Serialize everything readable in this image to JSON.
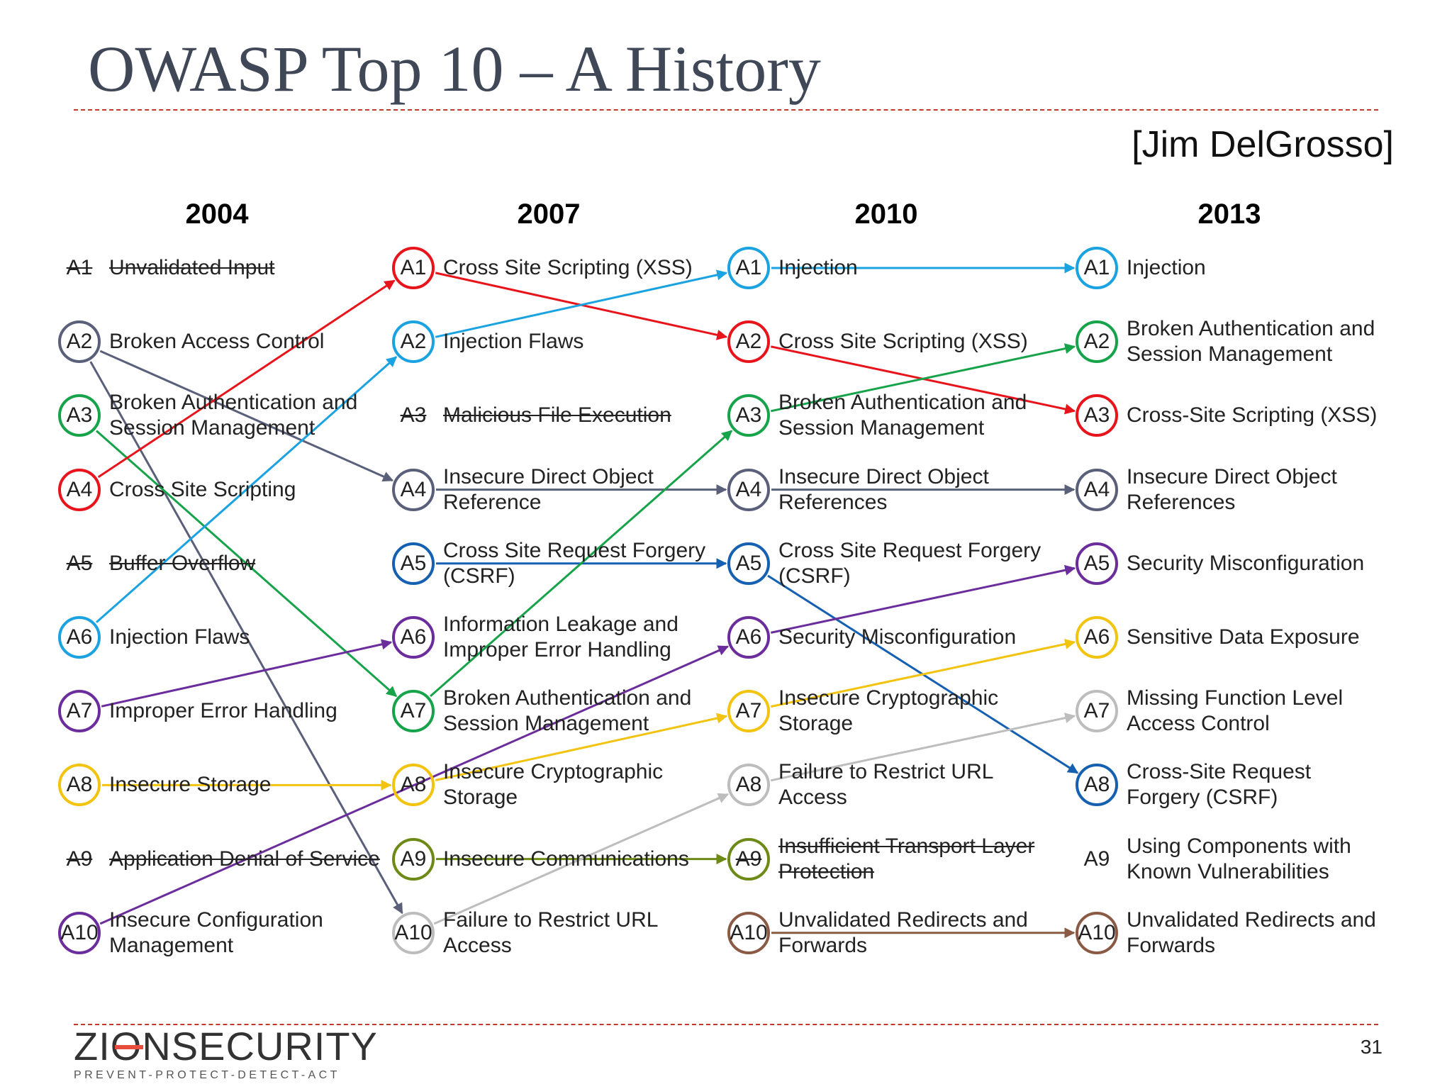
{
  "title": "OWASP Top 10 – A History",
  "credit": "[Jim DelGrosso]",
  "page_number": "31",
  "logo": {
    "name": "ZIONSECURITY",
    "tagline": "PREVENT-PROTECT-DETECT-ACT"
  },
  "colors": {
    "red": "#e8141c",
    "light_blue": "#1aa3e0",
    "green": "#16a34a",
    "slate": "#5a5f7a",
    "blue": "#1560b0",
    "purple": "#6b2d9c",
    "yellow": "#f2c30f",
    "olive": "#6e8a16",
    "gray": "#bdbdbd",
    "brown": "#8b5a44",
    "accent_line": "#c0392b"
  },
  "columns": [
    {
      "year": "2004",
      "entries": [
        {
          "code": "A1",
          "text": [
            "Unvalidated Input"
          ],
          "struck": true
        },
        {
          "code": "A2",
          "text": [
            "Broken Access Control"
          ],
          "color": "slate"
        },
        {
          "code": "A3",
          "text": [
            "Broken Authentication and",
            "Session Management"
          ],
          "color": "green"
        },
        {
          "code": "A4",
          "text": [
            "Cross Site Scripting"
          ],
          "color": "red"
        },
        {
          "code": "A5",
          "text": [
            "Buffer Overflow"
          ],
          "struck": true
        },
        {
          "code": "A6",
          "text": [
            "Injection Flaws"
          ],
          "color": "light_blue"
        },
        {
          "code": "A7",
          "text": [
            "Improper Error Handling"
          ],
          "color": "purple"
        },
        {
          "code": "A8",
          "text": [
            "Insecure Storage"
          ],
          "color": "yellow"
        },
        {
          "code": "A9",
          "text": [
            "Application Denial of Service"
          ],
          "struck": true
        },
        {
          "code": "A10",
          "text": [
            "Insecure Configuration",
            "Management"
          ],
          "color": "purple"
        }
      ]
    },
    {
      "year": "2007",
      "entries": [
        {
          "code": "A1",
          "text": [
            "Cross Site Scripting (XSS)"
          ],
          "color": "red"
        },
        {
          "code": "A2",
          "text": [
            "Injection Flaws"
          ],
          "color": "light_blue"
        },
        {
          "code": "A3",
          "text": [
            "Malicious File Execution"
          ],
          "struck": true
        },
        {
          "code": "A4",
          "text": [
            "Insecure Direct Object",
            "Reference"
          ],
          "color": "slate"
        },
        {
          "code": "A5",
          "text": [
            "Cross Site Request Forgery",
            "(CSRF)"
          ],
          "color": "blue"
        },
        {
          "code": "A6",
          "text": [
            "Information Leakage and",
            "Improper Error Handling"
          ],
          "color": "purple"
        },
        {
          "code": "A7",
          "text": [
            "Broken Authentication and",
            "Session Management"
          ],
          "color": "green"
        },
        {
          "code": "A8",
          "text": [
            "Insecure Cryptographic",
            "Storage"
          ],
          "color": "yellow"
        },
        {
          "code": "A9",
          "text": [
            "Insecure Communications"
          ],
          "color": "olive"
        },
        {
          "code": "A10",
          "text": [
            "Failure to Restrict URL",
            "Access"
          ],
          "color": "gray"
        }
      ]
    },
    {
      "year": "2010",
      "entries": [
        {
          "code": "A1",
          "text": [
            "Injection"
          ],
          "color": "light_blue"
        },
        {
          "code": "A2",
          "text": [
            "Cross Site Scripting (XSS)"
          ],
          "color": "red"
        },
        {
          "code": "A3",
          "text": [
            "Broken Authentication and",
            "Session Management"
          ],
          "color": "green"
        },
        {
          "code": "A4",
          "text": [
            "Insecure Direct Object",
            "References"
          ],
          "color": "slate"
        },
        {
          "code": "A5",
          "text": [
            "Cross Site Request Forgery",
            "(CSRF)"
          ],
          "color": "blue"
        },
        {
          "code": "A6",
          "text": [
            "Security Misconfiguration"
          ],
          "color": "purple"
        },
        {
          "code": "A7",
          "text": [
            "Insecure Cryptographic",
            "Storage"
          ],
          "color": "yellow"
        },
        {
          "code": "A8",
          "text": [
            "Failure to Restrict URL",
            "Access"
          ],
          "color": "gray"
        },
        {
          "code": "A9",
          "text": [
            "Insufficient Transport Layer",
            "Protection"
          ],
          "color": "olive",
          "struck": true
        },
        {
          "code": "A10",
          "text": [
            "Unvalidated Redirects and",
            "Forwards"
          ],
          "color": "brown"
        }
      ]
    },
    {
      "year": "2013",
      "entries": [
        {
          "code": "A1",
          "text": [
            "Injection"
          ],
          "color": "light_blue"
        },
        {
          "code": "A2",
          "text": [
            "Broken Authentication and",
            "Session Management"
          ],
          "color": "green"
        },
        {
          "code": "A3",
          "text": [
            "Cross-Site Scripting (XSS)"
          ],
          "color": "red"
        },
        {
          "code": "A4",
          "text": [
            "Insecure Direct Object",
            "References"
          ],
          "color": "slate"
        },
        {
          "code": "A5",
          "text": [
            "Security Misconfiguration"
          ],
          "color": "purple"
        },
        {
          "code": "A6",
          "text": [
            "Sensitive Data Exposure"
          ],
          "color": "yellow"
        },
        {
          "code": "A7",
          "text": [
            "Missing Function Level",
            "Access Control"
          ],
          "color": "gray"
        },
        {
          "code": "A8",
          "text": [
            "Cross-Site Request",
            "Forgery (CSRF)"
          ],
          "color": "blue"
        },
        {
          "code": "A9",
          "text": [
            "Using Components with",
            "Known Vulnerabilities"
          ]
        },
        {
          "code": "A10",
          "text": [
            "Unvalidated Redirects and",
            "Forwards"
          ],
          "color": "brown"
        }
      ]
    }
  ],
  "transitions": [
    {
      "from": [
        0,
        1
      ],
      "to": [
        1,
        3
      ],
      "color": "slate"
    },
    {
      "from": [
        0,
        1
      ],
      "to": [
        1,
        9
      ],
      "color": "slate"
    },
    {
      "from": [
        0,
        2
      ],
      "to": [
        1,
        6
      ],
      "color": "green"
    },
    {
      "from": [
        0,
        3
      ],
      "to": [
        1,
        0
      ],
      "color": "red"
    },
    {
      "from": [
        0,
        5
      ],
      "to": [
        1,
        1
      ],
      "color": "light_blue"
    },
    {
      "from": [
        0,
        6
      ],
      "to": [
        1,
        5
      ],
      "color": "purple"
    },
    {
      "from": [
        0,
        7
      ],
      "to": [
        1,
        7
      ],
      "color": "yellow"
    },
    {
      "from": [
        0,
        9
      ],
      "to": [
        2,
        5
      ],
      "color": "purple"
    },
    {
      "from": [
        1,
        0
      ],
      "to": [
        2,
        1
      ],
      "color": "red"
    },
    {
      "from": [
        1,
        1
      ],
      "to": [
        2,
        0
      ],
      "color": "light_blue"
    },
    {
      "from": [
        1,
        3
      ],
      "to": [
        2,
        3
      ],
      "color": "slate"
    },
    {
      "from": [
        1,
        4
      ],
      "to": [
        2,
        4
      ],
      "color": "blue"
    },
    {
      "from": [
        1,
        6
      ],
      "to": [
        2,
        2
      ],
      "color": "green"
    },
    {
      "from": [
        1,
        7
      ],
      "to": [
        2,
        6
      ],
      "color": "yellow"
    },
    {
      "from": [
        1,
        8
      ],
      "to": [
        2,
        8
      ],
      "color": "olive"
    },
    {
      "from": [
        1,
        9
      ],
      "to": [
        2,
        7
      ],
      "color": "gray"
    },
    {
      "from": [
        2,
        0
      ],
      "to": [
        3,
        0
      ],
      "color": "light_blue"
    },
    {
      "from": [
        2,
        1
      ],
      "to": [
        3,
        2
      ],
      "color": "red"
    },
    {
      "from": [
        2,
        2
      ],
      "to": [
        3,
        1
      ],
      "color": "green"
    },
    {
      "from": [
        2,
        3
      ],
      "to": [
        3,
        3
      ],
      "color": "slate"
    },
    {
      "from": [
        2,
        4
      ],
      "to": [
        3,
        7
      ],
      "color": "blue"
    },
    {
      "from": [
        2,
        5
      ],
      "to": [
        3,
        4
      ],
      "color": "purple"
    },
    {
      "from": [
        2,
        6
      ],
      "to": [
        3,
        5
      ],
      "color": "yellow"
    },
    {
      "from": [
        2,
        7
      ],
      "to": [
        3,
        6
      ],
      "color": "gray"
    },
    {
      "from": [
        2,
        9
      ],
      "to": [
        3,
        9
      ],
      "color": "brown"
    }
  ]
}
